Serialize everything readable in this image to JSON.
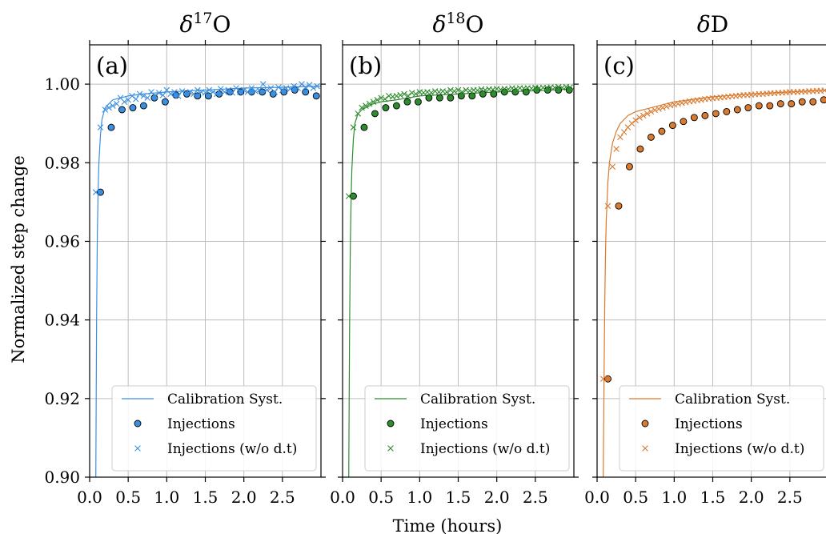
{
  "figure": {
    "ylabel": "Normalized step change",
    "xlabel": "Time (hours)"
  },
  "chart_data": [
    {
      "type": "scatter",
      "panel_label": "(a)",
      "title_base": "δ",
      "title_sup": "17",
      "title_tail": "O",
      "color": "#3a8fe0",
      "xlim": [
        0.0,
        3.0
      ],
      "ylim": [
        0.9,
        1.01
      ],
      "xticks": [
        "0.0",
        "0.5",
        "1.0",
        "1.5",
        "2.0",
        "2.5"
      ],
      "yticks": [
        "0.90",
        "0.92",
        "0.94",
        "0.96",
        "0.98",
        "1.00"
      ],
      "grid": true,
      "legend_position": "lower-right",
      "legend": [
        "Calibration Syst.",
        "Injections",
        "Injections (w/o d.t)"
      ],
      "series": [
        {
          "name": "Calibration Syst.",
          "kind": "line",
          "x": [
            0.08,
            0.09,
            0.1,
            0.11,
            0.12,
            0.14,
            0.16,
            0.2,
            0.25,
            0.3,
            0.4,
            0.5,
            0.7,
            1.0,
            1.5,
            2.0,
            2.5,
            3.0
          ],
          "y": [
            0.9,
            0.94,
            0.962,
            0.973,
            0.98,
            0.987,
            0.991,
            0.994,
            0.995,
            0.996,
            0.9965,
            0.997,
            0.9975,
            0.998,
            0.9985,
            0.999,
            0.9992,
            0.9995
          ]
        },
        {
          "name": "Injections",
          "kind": "points",
          "x": [
            0.14,
            0.28,
            0.42,
            0.56,
            0.7,
            0.84,
            0.98,
            1.12,
            1.26,
            1.4,
            1.54,
            1.68,
            1.82,
            1.96,
            2.1,
            2.24,
            2.38,
            2.52,
            2.66,
            2.8,
            2.94
          ],
          "y": [
            0.9725,
            0.989,
            0.9935,
            0.994,
            0.9945,
            0.9965,
            0.9955,
            0.9972,
            0.9975,
            0.997,
            0.997,
            0.9975,
            0.998,
            0.998,
            0.998,
            0.998,
            0.9975,
            0.998,
            0.9985,
            0.998,
            0.997
          ]
        },
        {
          "name": "Injections (w/o d.t)",
          "kind": "crosses",
          "x": [
            0.08,
            0.14,
            0.2,
            0.25,
            0.3,
            0.35,
            0.4,
            0.45,
            0.5,
            0.55,
            0.6,
            0.65,
            0.7,
            0.75,
            0.8,
            0.85,
            0.9,
            0.95,
            1.0,
            1.05,
            1.1,
            1.15,
            1.2,
            1.25,
            1.3,
            1.35,
            1.4,
            1.45,
            1.5,
            1.55,
            1.6,
            1.65,
            1.7,
            1.75,
            1.8,
            1.85,
            1.9,
            1.95,
            2.0,
            2.05,
            2.1,
            2.15,
            2.2,
            2.25,
            2.3,
            2.35,
            2.4,
            2.45,
            2.5,
            2.55,
            2.6,
            2.65,
            2.7,
            2.75,
            2.8,
            2.85,
            2.9,
            2.95
          ],
          "y": [
            0.9725,
            0.989,
            0.9935,
            0.994,
            0.9945,
            0.995,
            0.9965,
            0.9955,
            0.996,
            0.997,
            0.9962,
            0.9975,
            0.997,
            0.9965,
            0.998,
            0.997,
            0.9978,
            0.9972,
            0.9985,
            0.9975,
            0.998,
            0.997,
            0.9982,
            0.9978,
            0.998,
            0.9975,
            0.9985,
            0.998,
            0.9978,
            0.9985,
            0.998,
            0.9975,
            0.9988,
            0.998,
            0.9985,
            0.9978,
            0.999,
            0.998,
            0.9985,
            0.998,
            0.999,
            0.9982,
            0.9985,
            1.0,
            0.9985,
            0.999,
            0.998,
            0.9992,
            0.9985,
            0.999,
            0.9988,
            0.9995,
            0.999,
            1.0,
            0.9992,
            0.9998,
            0.999,
            0.9995
          ]
        }
      ]
    },
    {
      "type": "scatter",
      "panel_label": "(b)",
      "title_base": "δ",
      "title_sup": "18",
      "title_tail": "O",
      "color": "#2e8b2e",
      "xlim": [
        0.0,
        3.0
      ],
      "ylim": [
        0.9,
        1.01
      ],
      "xticks": [
        "0.0",
        "0.5",
        "1.0",
        "1.5",
        "2.0",
        "2.5"
      ],
      "yticks": [
        "0.90",
        "0.92",
        "0.94",
        "0.96",
        "0.98",
        "1.00"
      ],
      "grid": true,
      "legend_position": "lower-right",
      "legend": [
        "Calibration Syst.",
        "Injections",
        "Injections (w/o d.t)"
      ],
      "series": [
        {
          "name": "Calibration Syst.",
          "kind": "line",
          "x": [
            0.08,
            0.09,
            0.1,
            0.11,
            0.12,
            0.14,
            0.16,
            0.2,
            0.25,
            0.3,
            0.4,
            0.5,
            0.7,
            1.0,
            1.5,
            2.0,
            2.5,
            3.0
          ],
          "y": [
            0.9,
            0.935,
            0.958,
            0.97,
            0.978,
            0.986,
            0.99,
            0.9925,
            0.9935,
            0.994,
            0.995,
            0.9955,
            0.996,
            0.997,
            0.9975,
            0.998,
            0.9983,
            0.9988
          ]
        },
        {
          "name": "Injections",
          "kind": "points",
          "x": [
            0.14,
            0.28,
            0.42,
            0.56,
            0.7,
            0.84,
            0.98,
            1.12,
            1.26,
            1.4,
            1.54,
            1.68,
            1.82,
            1.96,
            2.1,
            2.24,
            2.38,
            2.52,
            2.66,
            2.8,
            2.94
          ],
          "y": [
            0.9715,
            0.989,
            0.9925,
            0.994,
            0.9945,
            0.9955,
            0.9955,
            0.9965,
            0.9965,
            0.9965,
            0.997,
            0.997,
            0.9975,
            0.9975,
            0.998,
            0.998,
            0.998,
            0.9985,
            0.9985,
            0.9985,
            0.9985
          ]
        },
        {
          "name": "Injections (w/o d.t)",
          "kind": "crosses",
          "x": [
            0.08,
            0.14,
            0.2,
            0.25,
            0.3,
            0.35,
            0.4,
            0.45,
            0.5,
            0.55,
            0.6,
            0.65,
            0.7,
            0.75,
            0.8,
            0.85,
            0.9,
            0.95,
            1.0,
            1.05,
            1.1,
            1.15,
            1.2,
            1.25,
            1.3,
            1.35,
            1.4,
            1.45,
            1.5,
            1.55,
            1.6,
            1.65,
            1.7,
            1.75,
            1.8,
            1.85,
            1.9,
            1.95,
            2.0,
            2.05,
            2.1,
            2.15,
            2.2,
            2.25,
            2.3,
            2.35,
            2.4,
            2.45,
            2.5,
            2.55,
            2.6,
            2.65,
            2.7,
            2.75,
            2.8,
            2.85,
            2.9,
            2.95
          ],
          "y": [
            0.9715,
            0.989,
            0.9925,
            0.994,
            0.9945,
            0.995,
            0.9955,
            0.996,
            0.9965,
            0.9962,
            0.997,
            0.9968,
            0.997,
            0.9972,
            0.9975,
            0.997,
            0.9978,
            0.9975,
            0.998,
            0.9978,
            0.998,
            0.9978,
            0.9982,
            0.998,
            0.9982,
            0.998,
            0.9985,
            0.9982,
            0.9985,
            0.998,
            0.9985,
            0.9983,
            0.9985,
            0.9984,
            0.9987,
            0.9985,
            0.9987,
            0.9986,
            0.9988,
            0.9986,
            0.9988,
            0.9987,
            0.999,
            0.9988,
            0.999,
            0.9989,
            0.999,
            0.9989,
            0.9991,
            0.999,
            0.9991,
            0.999,
            0.9992,
            0.9991,
            0.9993,
            0.9991,
            0.9993,
            0.9992
          ]
        }
      ]
    },
    {
      "type": "scatter",
      "panel_label": "(c)",
      "title_base": "δ",
      "title_sup": "",
      "title_tail": "D",
      "color": "#d97a2e",
      "xlim": [
        0.0,
        3.0
      ],
      "ylim": [
        0.9,
        1.01
      ],
      "xticks": [
        "0.0",
        "0.5",
        "1.0",
        "1.5",
        "2.0",
        "2.5"
      ],
      "yticks": [
        "0.90",
        "0.92",
        "0.94",
        "0.96",
        "0.98",
        "1.00"
      ],
      "grid": true,
      "legend_position": "lower-right",
      "legend": [
        "Calibration Syst.",
        "Injections",
        "Injections (w/o d.t)"
      ],
      "series": [
        {
          "name": "Calibration Syst.",
          "kind": "line",
          "x": [
            0.08,
            0.09,
            0.1,
            0.11,
            0.12,
            0.14,
            0.16,
            0.2,
            0.25,
            0.3,
            0.4,
            0.5,
            0.7,
            1.0,
            1.5,
            2.0,
            2.5,
            3.0
          ],
          "y": [
            0.9,
            0.925,
            0.945,
            0.958,
            0.966,
            0.975,
            0.98,
            0.985,
            0.988,
            0.99,
            0.992,
            0.993,
            0.994,
            0.9955,
            0.9968,
            0.9975,
            0.998,
            0.9985
          ]
        },
        {
          "name": "Injections",
          "kind": "points",
          "x": [
            0.14,
            0.28,
            0.42,
            0.56,
            0.7,
            0.84,
            0.98,
            1.12,
            1.26,
            1.4,
            1.54,
            1.68,
            1.82,
            1.96,
            2.1,
            2.24,
            2.38,
            2.52,
            2.66,
            2.8,
            2.94
          ],
          "y": [
            0.925,
            0.969,
            0.979,
            0.9835,
            0.9865,
            0.988,
            0.9895,
            0.9905,
            0.9915,
            0.992,
            0.9925,
            0.993,
            0.9935,
            0.994,
            0.9945,
            0.9945,
            0.995,
            0.995,
            0.9955,
            0.9955,
            0.996
          ]
        },
        {
          "name": "Injections (w/o d.t)",
          "kind": "crosses",
          "x": [
            0.08,
            0.14,
            0.2,
            0.25,
            0.3,
            0.35,
            0.4,
            0.45,
            0.5,
            0.55,
            0.6,
            0.65,
            0.7,
            0.75,
            0.8,
            0.85,
            0.9,
            0.95,
            1.0,
            1.05,
            1.1,
            1.15,
            1.2,
            1.25,
            1.3,
            1.35,
            1.4,
            1.45,
            1.5,
            1.55,
            1.6,
            1.65,
            1.7,
            1.75,
            1.8,
            1.85,
            1.9,
            1.95,
            2.0,
            2.05,
            2.1,
            2.15,
            2.2,
            2.25,
            2.3,
            2.35,
            2.4,
            2.45,
            2.5,
            2.55,
            2.6,
            2.65,
            2.7,
            2.75,
            2.8,
            2.85,
            2.9,
            2.95
          ],
          "y": [
            0.925,
            0.969,
            0.979,
            0.9835,
            0.9865,
            0.9878,
            0.989,
            0.99,
            0.9908,
            0.9915,
            0.992,
            0.9925,
            0.993,
            0.9934,
            0.9937,
            0.994,
            0.9943,
            0.9946,
            0.9948,
            0.995,
            0.9952,
            0.9954,
            0.9956,
            0.9957,
            0.9959,
            0.996,
            0.9962,
            0.9963,
            0.9964,
            0.9965,
            0.9966,
            0.9967,
            0.9968,
            0.9969,
            0.997,
            0.9971,
            0.9972,
            0.9972,
            0.9973,
            0.9974,
            0.9975,
            0.9975,
            0.9976,
            0.9977,
            0.9977,
            0.9978,
            0.9978,
            0.9979,
            0.998,
            0.998,
            0.998,
            0.9981,
            0.9981,
            0.9982,
            0.9982,
            0.9983,
            0.9983,
            0.9984
          ]
        }
      ]
    }
  ]
}
